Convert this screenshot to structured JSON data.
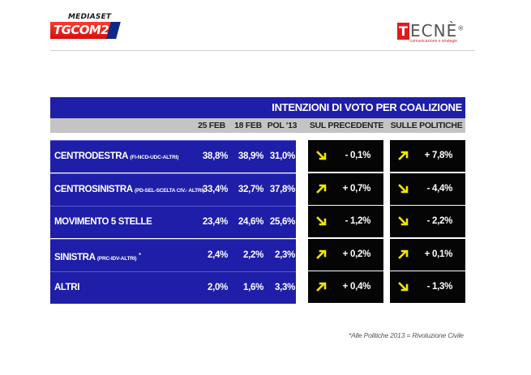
{
  "header": {
    "mediaset_label": "MEDIASET",
    "tgcom_label": "TGCOM",
    "tgcom_number": "24",
    "tecne_letter": "T",
    "tecne_rest": "ECNÈ",
    "tecne_reg": "®",
    "tecne_sub": "comunicazione e strategie"
  },
  "chart_data": {
    "type": "table",
    "title": "INTENZIONI DI VOTO PER COALIZIONE",
    "columns": [
      "25 FEB",
      "18 FEB",
      "POL '13",
      "SUL PRECEDENTE",
      "SULLE POLITICHE"
    ],
    "rows": [
      {
        "label": "CENTRODESTRA",
        "sub": "(FI-NCD-UDC-ALTRI)",
        "note": "",
        "values": [
          "38,8%",
          "38,9%",
          "31,0%"
        ],
        "sul_precedente": {
          "direction": "down",
          "value": "- 0,1%"
        },
        "sulle_politiche": {
          "direction": "up",
          "value": "+ 7,8%"
        }
      },
      {
        "label": "CENTROSINISTRA",
        "sub": "(PD-SEL-SCELTA CIV.- ALTRI)",
        "note": "",
        "values": [
          "33,4%",
          "32,7%",
          "37,8%"
        ],
        "sul_precedente": {
          "direction": "up",
          "value": "+ 0,7%"
        },
        "sulle_politiche": {
          "direction": "down",
          "value": "- 4,4%"
        }
      },
      {
        "label": "MOVIMENTO 5 STELLE",
        "sub": "",
        "note": "",
        "values": [
          "23,4%",
          "24,6%",
          "25,6%"
        ],
        "sul_precedente": {
          "direction": "down",
          "value": "- 1,2%"
        },
        "sulle_politiche": {
          "direction": "down",
          "value": "- 2,2%"
        }
      },
      {
        "label": "SINISTRA",
        "sub": "(PRC-IDV-ALTRI)",
        "note": "*",
        "values": [
          "2,4%",
          "2,2%",
          "2,3%"
        ],
        "sul_precedente": {
          "direction": "up",
          "value": "+ 0,2%"
        },
        "sulle_politiche": {
          "direction": "up",
          "value": "+ 0,1%"
        }
      },
      {
        "label": "ALTRI",
        "sub": "",
        "note": "",
        "values": [
          "2,0%",
          "1,6%",
          "3,3%"
        ],
        "sul_precedente": {
          "direction": "up",
          "value": "+ 0,4%"
        },
        "sulle_politiche": {
          "direction": "down",
          "value": "- 1,3%"
        }
      }
    ],
    "footnote": "*Alle Politiche 2013 = Rivoluzione Civile"
  },
  "colors": {
    "table_blue": "#1e1ea8",
    "header_grey": "#c4c4c4",
    "delta_box": "#050505",
    "arrow_yellow": "#f2e600",
    "brand_red": "#e01b1b"
  }
}
